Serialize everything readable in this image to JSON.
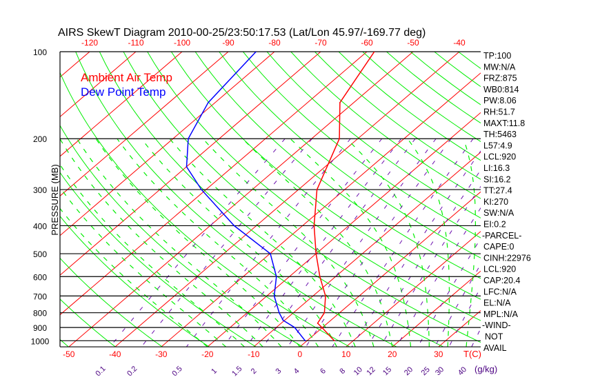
{
  "chart_data": {
    "type": "line",
    "title": "AIRS SkewT Diagram 2010-00-25/23:50:17.53 (Lat/Lon 45.97/-169.77 deg)",
    "ylabel": "PRESSURE (MB)",
    "xlabel": "T(C)",
    "mixing_ratio_unit": "(g/kg)",
    "ylim": [
      1050,
      100
    ],
    "pressure_ticks": [
      100,
      200,
      300,
      400,
      500,
      600,
      700,
      800,
      900,
      1000
    ],
    "top_temp_ticks": [
      -120,
      -110,
      -100,
      -90,
      -80,
      -70,
      -60,
      -50,
      -40
    ],
    "bottom_temp_ticks": [
      -50,
      -40,
      -30,
      -20,
      -10,
      0,
      10,
      20,
      30
    ],
    "mixing_ratio_ticks": [
      "0.1",
      "0.2",
      "0.5",
      "1",
      "1.5",
      "2",
      "3",
      "4",
      "6",
      "8",
      "10",
      "12",
      "15",
      "20",
      "25",
      "30",
      "40"
    ],
    "legend": [
      {
        "name": "Ambient Air Temp",
        "color": "#ff0000"
      },
      {
        "name": "Dew Point Temp",
        "color": "#0000ff"
      }
    ],
    "series": [
      {
        "name": "Ambient Air Temp",
        "color": "#ff0000",
        "pressure": [
          100,
          150,
          200,
          300,
          400,
          500,
          600,
          700,
          800,
          870,
          900,
          1000
        ],
        "temp": [
          -58.4,
          -53,
          -44,
          -36,
          -27.5,
          -20,
          -13.4,
          -7.3,
          -3.3,
          -2.1,
          -0.1,
          5.9
        ]
      },
      {
        "name": "Dew Point Temp",
        "color": "#0000ff",
        "pressure": [
          100,
          150,
          200,
          250,
          300,
          400,
          500,
          600,
          700,
          800,
          850,
          900,
          1000
        ],
        "temp": [
          -84,
          -81.5,
          -76.7,
          -70,
          -61,
          -44.8,
          -29.9,
          -22.8,
          -18.4,
          -13.1,
          -10.3,
          -6,
          -0.4
        ]
      }
    ],
    "colors": {
      "isotherm": "#ff0000",
      "dry_adiabat": "#00ee00",
      "moist_adiabat": "#00ee00",
      "mixing_ratio": "#6a0dad",
      "isobar": "#000000"
    }
  },
  "stats": [
    "TP:100",
    "MW:N/A",
    "FRZ:875",
    "WB0:814",
    "PW:8.06",
    "RH:51.7",
    "MAXT:11.8",
    "TH:5463",
    "L57:4.9",
    "LCL:920",
    "LI:16.3",
    "SI:16.2",
    "TT:27.4",
    "KI:270",
    "SW:N/A",
    "EI:0.2",
    "-PARCEL-",
    "CAPE:0",
    "CINH:22976",
    "LCL:920",
    "CAP:20.4",
    "LFC:N/A",
    "EL:N/A",
    "MPL:N/A",
    "-WIND-",
    "NOT",
    "AVAIL"
  ]
}
